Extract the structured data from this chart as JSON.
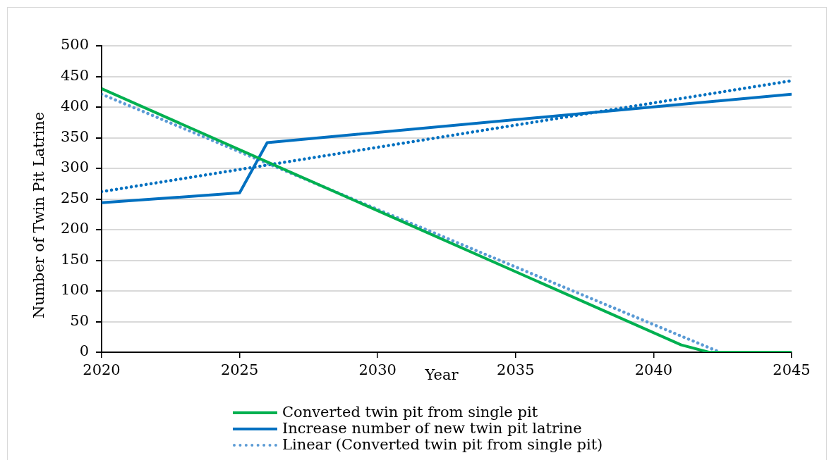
{
  "chart_data": {
    "type": "line",
    "xlabel": "Year",
    "ylabel": "Number of Twin Pit Latrine",
    "xlim": [
      2020,
      2045
    ],
    "xticks": [
      2020,
      2025,
      2030,
      2035,
      2040,
      2045
    ],
    "ylim": [
      0,
      500
    ],
    "yticks": [
      0,
      50,
      100,
      150,
      200,
      250,
      300,
      350,
      400,
      450,
      500
    ],
    "grid": "y",
    "legend": "bottom",
    "marker": "none",
    "series": [
      {
        "name": "Converted twin pit from single pit",
        "color": "#00b050",
        "line_style": "solid",
        "x": [
          2020,
          2041,
          2042,
          2045
        ],
        "values": [
          430,
          12,
          0,
          0
        ]
      },
      {
        "name": "Increase number of new twin pit latrine",
        "color": "#0070c0",
        "line_style": "solid",
        "x": [
          2020,
          2025,
          2026,
          2045
        ],
        "values": [
          244,
          260,
          342,
          421
        ]
      },
      {
        "name": "Linear (Converted twin pit from single pit)",
        "color": "#5b9bd5",
        "line_style": "dotted",
        "x": [
          2020,
          2042.4
        ],
        "values": [
          421,
          0
        ]
      },
      {
        "color": "#0070c0",
        "line_style": "dotted",
        "x": [
          2020,
          2045
        ],
        "values": [
          262,
          443
        ]
      }
    ]
  }
}
